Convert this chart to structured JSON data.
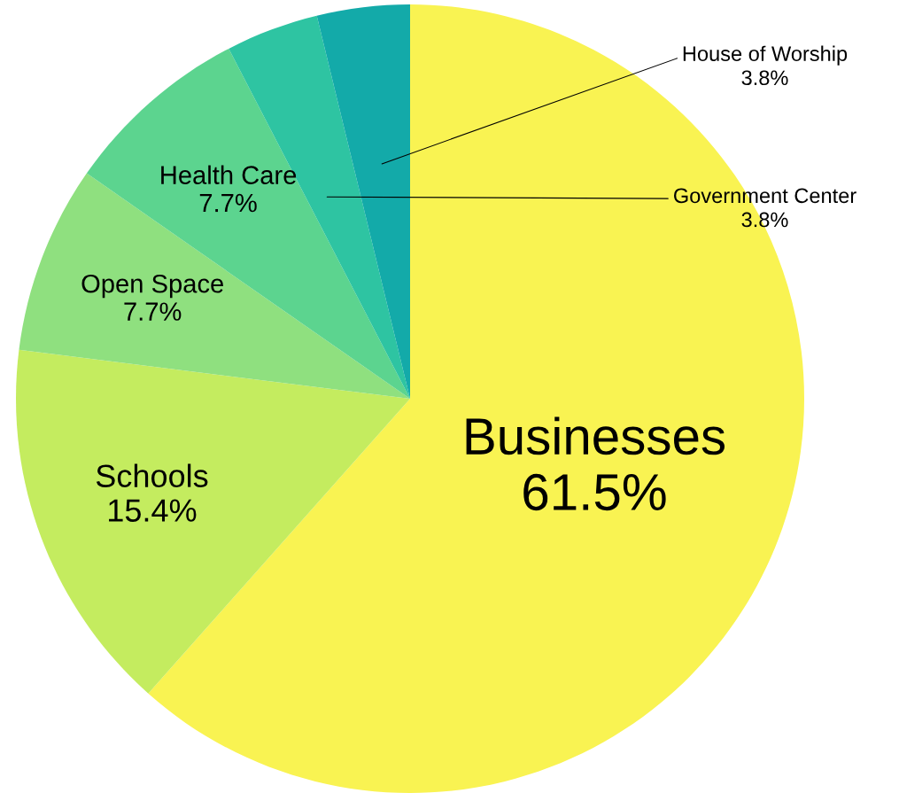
{
  "chart_data": {
    "type": "pie",
    "categories": [
      "Businesses",
      "Schools",
      "Open Space",
      "Health Care",
      "Government Center",
      "House of Worship"
    ],
    "values": [
      61.5,
      15.4,
      7.7,
      7.7,
      3.8,
      3.8
    ],
    "colors": [
      "#f9f352",
      "#c4ec5f",
      "#8fe07f",
      "#5cd48f",
      "#2ec4a2",
      "#13aaa9"
    ],
    "value_labels": [
      "61.5%",
      "15.4%",
      "7.7%",
      "7.7%",
      "3.8%",
      "3.8%"
    ]
  }
}
